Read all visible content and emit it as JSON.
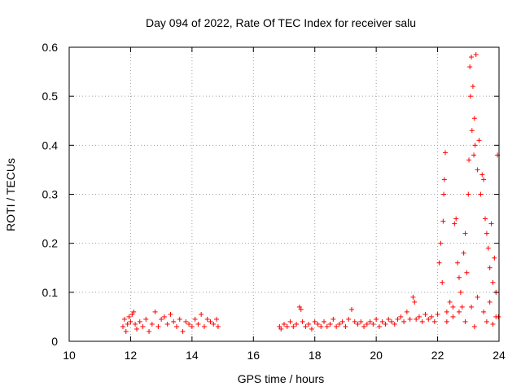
{
  "chart_data": {
    "type": "scatter",
    "title": "Day 094 of 2022, Rate Of TEC Index for receiver salu",
    "xlabel": "GPS time / hours",
    "ylabel": "ROTI / TECUs",
    "xlim": [
      10,
      24
    ],
    "ylim": [
      0,
      0.6
    ],
    "xticks": [
      10,
      12,
      14,
      16,
      18,
      20,
      22,
      24
    ],
    "yticks": [
      0,
      0.1,
      0.2,
      0.3,
      0.4,
      0.5,
      0.6
    ],
    "xtick_labels": [
      "10",
      "12",
      "14",
      "16",
      "18",
      "20",
      "22",
      "24"
    ],
    "ytick_labels": [
      "0",
      "0.1",
      "0.2",
      "0.3",
      "0.4",
      "0.5",
      "0.6"
    ],
    "grid": true,
    "marker": "+",
    "color": "#ff0000",
    "series": [
      {
        "points": [
          [
            11.75,
            0.03
          ],
          [
            11.8,
            0.045
          ],
          [
            11.85,
            0.02
          ],
          [
            11.9,
            0.035
          ],
          [
            11.95,
            0.05
          ],
          [
            12.0,
            0.04
          ],
          [
            12.05,
            0.055
          ],
          [
            12.1,
            0.06
          ],
          [
            12.15,
            0.035
          ],
          [
            12.2,
            0.025
          ],
          [
            12.3,
            0.04
          ],
          [
            12.4,
            0.03
          ],
          [
            12.5,
            0.045
          ],
          [
            12.6,
            0.02
          ],
          [
            12.7,
            0.035
          ],
          [
            12.8,
            0.06
          ],
          [
            12.9,
            0.03
          ],
          [
            13.0,
            0.045
          ],
          [
            13.1,
            0.05
          ],
          [
            13.2,
            0.035
          ],
          [
            13.3,
            0.055
          ],
          [
            13.4,
            0.04
          ],
          [
            13.5,
            0.03
          ],
          [
            13.6,
            0.045
          ],
          [
            13.7,
            0.02
          ],
          [
            13.8,
            0.04
          ],
          [
            13.9,
            0.035
          ],
          [
            14.0,
            0.03
          ],
          [
            14.1,
            0.045
          ],
          [
            14.2,
            0.035
          ],
          [
            14.3,
            0.055
          ],
          [
            14.4,
            0.03
          ],
          [
            14.5,
            0.045
          ],
          [
            14.6,
            0.04
          ],
          [
            14.7,
            0.035
          ],
          [
            14.8,
            0.045
          ],
          [
            14.85,
            0.03
          ],
          [
            16.85,
            0.03
          ],
          [
            16.9,
            0.025
          ],
          [
            17.0,
            0.035
          ],
          [
            17.1,
            0.03
          ],
          [
            17.2,
            0.04
          ],
          [
            17.3,
            0.03
          ],
          [
            17.4,
            0.035
          ],
          [
            17.5,
            0.07
          ],
          [
            17.55,
            0.065
          ],
          [
            17.6,
            0.04
          ],
          [
            17.7,
            0.03
          ],
          [
            17.8,
            0.035
          ],
          [
            17.9,
            0.025
          ],
          [
            18.0,
            0.04
          ],
          [
            18.1,
            0.035
          ],
          [
            18.2,
            0.03
          ],
          [
            18.3,
            0.04
          ],
          [
            18.4,
            0.03
          ],
          [
            18.5,
            0.035
          ],
          [
            18.6,
            0.045
          ],
          [
            18.7,
            0.03
          ],
          [
            18.8,
            0.035
          ],
          [
            18.9,
            0.04
          ],
          [
            19.0,
            0.03
          ],
          [
            19.1,
            0.045
          ],
          [
            19.2,
            0.065
          ],
          [
            19.3,
            0.04
          ],
          [
            19.4,
            0.035
          ],
          [
            19.5,
            0.04
          ],
          [
            19.6,
            0.03
          ],
          [
            19.7,
            0.035
          ],
          [
            19.8,
            0.04
          ],
          [
            19.9,
            0.035
          ],
          [
            20.0,
            0.045
          ],
          [
            20.1,
            0.03
          ],
          [
            20.2,
            0.04
          ],
          [
            20.3,
            0.035
          ],
          [
            20.4,
            0.045
          ],
          [
            20.5,
            0.04
          ],
          [
            20.6,
            0.035
          ],
          [
            20.7,
            0.045
          ],
          [
            20.8,
            0.05
          ],
          [
            20.9,
            0.04
          ],
          [
            21.0,
            0.06
          ],
          [
            21.1,
            0.045
          ],
          [
            21.2,
            0.09
          ],
          [
            21.25,
            0.08
          ],
          [
            21.3,
            0.045
          ],
          [
            21.4,
            0.05
          ],
          [
            21.5,
            0.04
          ],
          [
            21.6,
            0.055
          ],
          [
            21.7,
            0.045
          ],
          [
            21.8,
            0.05
          ],
          [
            21.9,
            0.04
          ],
          [
            22.0,
            0.055
          ],
          [
            22.05,
            0.16
          ],
          [
            22.1,
            0.2
          ],
          [
            22.15,
            0.12
          ],
          [
            22.18,
            0.245
          ],
          [
            22.2,
            0.3
          ],
          [
            22.22,
            0.33
          ],
          [
            22.25,
            0.385
          ],
          [
            22.3,
            0.06
          ],
          [
            22.4,
            0.08
          ],
          [
            22.5,
            0.07
          ],
          [
            22.55,
            0.24
          ],
          [
            22.6,
            0.25
          ],
          [
            22.65,
            0.16
          ],
          [
            22.7,
            0.13
          ],
          [
            22.75,
            0.1
          ],
          [
            22.8,
            0.07
          ],
          [
            22.85,
            0.18
          ],
          [
            22.9,
            0.22
          ],
          [
            22.95,
            0.14
          ],
          [
            23.0,
            0.3
          ],
          [
            23.02,
            0.37
          ],
          [
            23.05,
            0.56
          ],
          [
            23.07,
            0.5
          ],
          [
            23.1,
            0.58
          ],
          [
            23.12,
            0.43
          ],
          [
            23.15,
            0.52
          ],
          [
            23.18,
            0.38
          ],
          [
            23.2,
            0.455
          ],
          [
            23.22,
            0.4
          ],
          [
            23.25,
            0.585
          ],
          [
            23.3,
            0.35
          ],
          [
            23.35,
            0.41
          ],
          [
            23.4,
            0.3
          ],
          [
            23.45,
            0.34
          ],
          [
            23.5,
            0.33
          ],
          [
            23.55,
            0.25
          ],
          [
            23.6,
            0.22
          ],
          [
            23.65,
            0.19
          ],
          [
            23.7,
            0.15
          ],
          [
            23.75,
            0.24
          ],
          [
            23.8,
            0.12
          ],
          [
            23.85,
            0.17
          ],
          [
            23.9,
            0.1
          ],
          [
            23.95,
            0.38
          ],
          [
            23.98,
            0.05
          ],
          [
            22.3,
            0.04
          ],
          [
            22.5,
            0.05
          ],
          [
            22.7,
            0.06
          ],
          [
            22.9,
            0.04
          ],
          [
            23.1,
            0.07
          ],
          [
            23.3,
            0.09
          ],
          [
            23.5,
            0.06
          ],
          [
            23.7,
            0.08
          ],
          [
            23.9,
            0.05
          ],
          [
            23.2,
            0.03
          ],
          [
            23.6,
            0.04
          ],
          [
            23.8,
            0.035
          ]
        ]
      }
    ]
  }
}
